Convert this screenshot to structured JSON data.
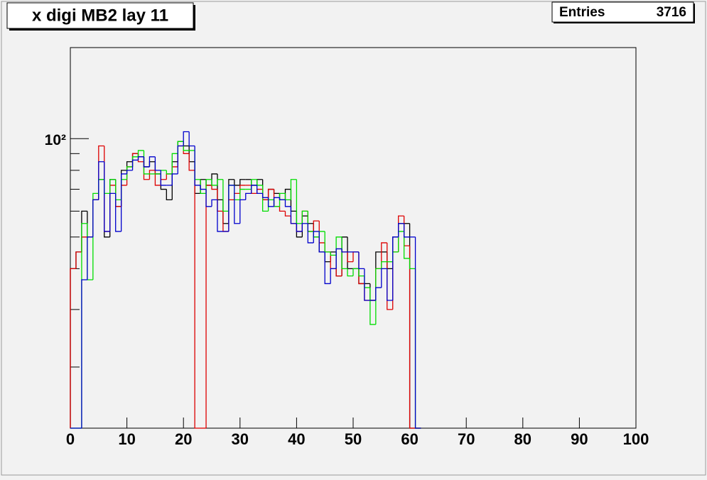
{
  "chart_data": {
    "type": "histogram",
    "title": "x digi MB2 lay 11",
    "stats": {
      "label": "Entries",
      "value": 3716
    },
    "bins": [
      0,
      1,
      2,
      3,
      4,
      5,
      6,
      7,
      8,
      9,
      10,
      11,
      12,
      13,
      14,
      15,
      16,
      17,
      18,
      19,
      20,
      21,
      22,
      23,
      24,
      25,
      26,
      27,
      28,
      29,
      30,
      31,
      32,
      33,
      34,
      35,
      36,
      37,
      38,
      39,
      40,
      41,
      42,
      43,
      44,
      45,
      46,
      47,
      48,
      49,
      50,
      51,
      52,
      53,
      54,
      55,
      56,
      57,
      58,
      59,
      60,
      61,
      62
    ],
    "series": [
      {
        "color": "#000000",
        "values": [
          40,
          45,
          60,
          50,
          65,
          75,
          50,
          75,
          62,
          80,
          85,
          90,
          88,
          82,
          85,
          78,
          70,
          65,
          85,
          98,
          95,
          85,
          68,
          75,
          72,
          78,
          65,
          55,
          75,
          72,
          75,
          75,
          72,
          75,
          65,
          70,
          68,
          65,
          70,
          60,
          50,
          58,
          55,
          50,
          45,
          42,
          45,
          38,
          50,
          40,
          40,
          36,
          36,
          32,
          45,
          45,
          40,
          50,
          55,
          55,
          0,
          0
        ]
      },
      {
        "color": "#dd0000",
        "values": [
          40,
          45,
          50,
          50,
          65,
          95,
          52,
          72,
          62,
          72,
          82,
          90,
          85,
          75,
          80,
          72,
          75,
          78,
          82,
          95,
          90,
          80,
          0,
          0,
          72,
          70,
          60,
          52,
          65,
          68,
          72,
          72,
          68,
          70,
          65,
          70,
          62,
          60,
          58,
          55,
          52,
          60,
          52,
          56,
          48,
          45,
          40,
          38,
          45,
          42,
          45,
          36,
          32,
          32,
          40,
          48,
          30,
          45,
          58,
          47,
          0,
          0
        ]
      },
      {
        "color": "#00dd00",
        "values": [
          0,
          0,
          55,
          37,
          68,
          75,
          68,
          75,
          65,
          75,
          82,
          88,
          92,
          78,
          78,
          78,
          80,
          78,
          90,
          98,
          92,
          92,
          75,
          68,
          75,
          72,
          75,
          60,
          72,
          65,
          70,
          70,
          75,
          72,
          60,
          65,
          62,
          68,
          65,
          75,
          55,
          60,
          52,
          50,
          52,
          45,
          44,
          50,
          40,
          38,
          40,
          38,
          35,
          27,
          40,
          42,
          42,
          45,
          52,
          43,
          40,
          0
        ]
      },
      {
        "color": "#0000cc",
        "values": [
          0,
          0,
          37,
          50,
          65,
          85,
          52,
          68,
          52,
          78,
          80,
          86,
          88,
          82,
          88,
          80,
          72,
          72,
          78,
          95,
          105,
          95,
          72,
          70,
          62,
          65,
          52,
          52,
          72,
          55,
          65,
          68,
          72,
          68,
          66,
          62,
          66,
          65,
          62,
          55,
          52,
          55,
          48,
          52,
          45,
          36,
          40,
          46,
          45,
          45,
          45,
          40,
          32,
          32,
          35,
          40,
          32,
          50,
          55,
          50,
          50,
          0
        ]
      }
    ],
    "xlim": [
      0,
      100
    ],
    "xticks": [
      0,
      10,
      20,
      30,
      40,
      50,
      60,
      70,
      80,
      90,
      100
    ],
    "ylim": [
      13,
      190
    ],
    "yticks": [
      {
        "value": 100,
        "label": "10²"
      }
    ],
    "yminorticks": [
      20,
      30,
      40,
      50,
      60,
      70,
      80,
      90
    ],
    "log_y": true
  }
}
